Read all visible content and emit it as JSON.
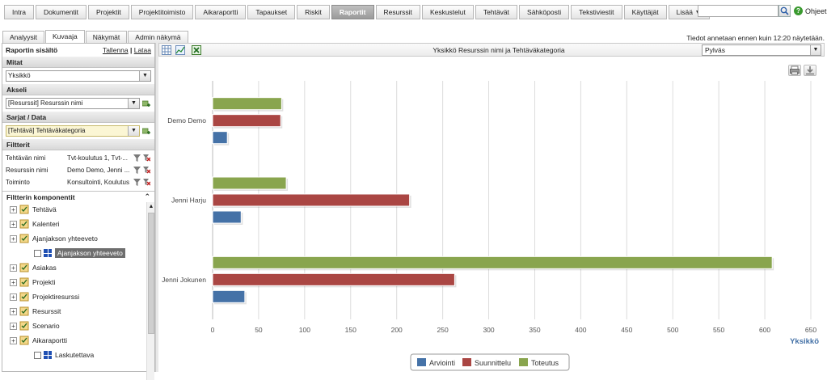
{
  "nav": {
    "tabs": [
      "Intra",
      "Dokumentit",
      "Projektit",
      "Projektitoimisto",
      "Aikaraportti",
      "Tapaukset",
      "Riskit",
      "Raportit",
      "Resurssit",
      "Keskustelut",
      "Tehtävät",
      "Sähköposti",
      "Tekstiviestit",
      "Käyttäjät",
      "Lisää ▼"
    ],
    "active": "Raportit",
    "search": {
      "value": ""
    },
    "help_label": "Ohjeet"
  },
  "subtabs": [
    "Analyysit",
    "Kuvaaja",
    "Näkymät",
    "Admin näkymä"
  ],
  "subtab_active": "Kuvaaja",
  "notice": "Tiedot annetaan ennen kuin 12:20 näytetään.",
  "panel": {
    "title": "Raportin sisältö",
    "save": "Tallenna",
    "load": "Lataa",
    "measures_label": "Mitat",
    "measures_value": "Yksikkö",
    "axis_label": "Akseli",
    "axis_value": "[Resurssit] Resurssin nimi",
    "series_label": "Sarjat / Data",
    "series_value": "[Tehtävä] Tehtäväkategoria",
    "filters_label": "Filtterit",
    "filters": [
      {
        "name": "Tehtävän nimi",
        "value": "Tvt-koulutus 1, Tvt-..."
      },
      {
        "name": "Resurssin nimi",
        "value": "Demo Demo, Jenni ..."
      },
      {
        "name": "Toiminto",
        "value": "Konsultointi, Koulutus"
      }
    ],
    "components_label": "Filtterin komponentit",
    "tree": [
      {
        "label": "Tehtävä",
        "type": "folder"
      },
      {
        "label": "Kalenteri",
        "type": "folder"
      },
      {
        "label": "Ajanjakson yhteeveto",
        "type": "folder"
      },
      {
        "label": "Ajanjakson yhteeveto",
        "type": "leaf",
        "selected": true
      },
      {
        "label": "Asiakas",
        "type": "folder"
      },
      {
        "label": "Projekti",
        "type": "folder"
      },
      {
        "label": "Projektiresurssi",
        "type": "folder"
      },
      {
        "label": "Resurssit",
        "type": "folder"
      },
      {
        "label": "Scenario",
        "type": "folder"
      },
      {
        "label": "Aikaraportti",
        "type": "folder"
      },
      {
        "label": "Laskutettava",
        "type": "leaf"
      }
    ]
  },
  "toolbar": {
    "chart_title": "Yksikkö Resurssin nimi ja Tehtäväkategoria",
    "chart_type": "Pylväs"
  },
  "colors": {
    "Arviointi": "#4572a7",
    "Suunnittelu": "#aa4643",
    "Toteutus": "#89a54e"
  },
  "chart_data": {
    "type": "bar",
    "orientation": "horizontal",
    "categories": [
      "Demo Demo",
      "Jenni Harju",
      "Jenni Jokunen"
    ],
    "series": [
      {
        "name": "Toteutus",
        "values": [
          75,
          80,
          608
        ]
      },
      {
        "name": "Suunnittelu",
        "values": [
          74,
          214,
          263
        ]
      },
      {
        "name": "Arviointi",
        "values": [
          16,
          31,
          35
        ]
      }
    ],
    "xlabel": "Yksikkö",
    "xlim": [
      0,
      650
    ],
    "xticks": [
      0,
      50,
      100,
      150,
      200,
      250,
      300,
      350,
      400,
      450,
      500,
      550,
      600,
      650
    ],
    "grid": true,
    "legend": [
      "Arviointi",
      "Suunnittelu",
      "Toteutus"
    ],
    "legend_position": "bottom"
  }
}
